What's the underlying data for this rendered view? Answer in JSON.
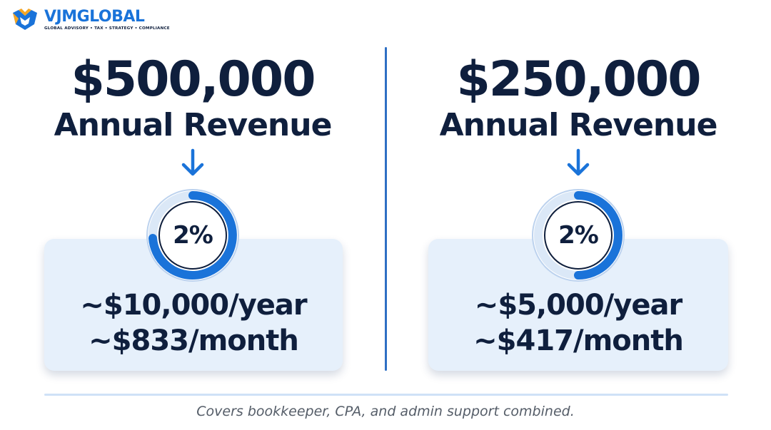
{
  "brand": {
    "name_part1": "VJM",
    "name_part2": "GLOBAL",
    "tagline": "GLOBAL ADVISORY • TAX • STRATEGY • COMPLIANCE",
    "primary_color": "#1a73d9",
    "accent_color": "#f5a623"
  },
  "panels": [
    {
      "amount": "$500,000",
      "label": "Annual Revenue",
      "percent": "2%",
      "yearly": "~$10,000/year",
      "monthly": "~$833/month"
    },
    {
      "amount": "$250,000",
      "label": "Annual Revenue",
      "percent": "2%",
      "yearly": "~$5,000/year",
      "monthly": "~$417/month"
    }
  ],
  "footnote": "Covers bookkeeper, CPA, and admin support combined.",
  "colors": {
    "text_dark": "#0f1f3d",
    "ring_blue": "#1a73d9",
    "ring_light": "#dbe8f7",
    "card_bg": "#e6f0fb",
    "divider": "#2e6fc4"
  }
}
